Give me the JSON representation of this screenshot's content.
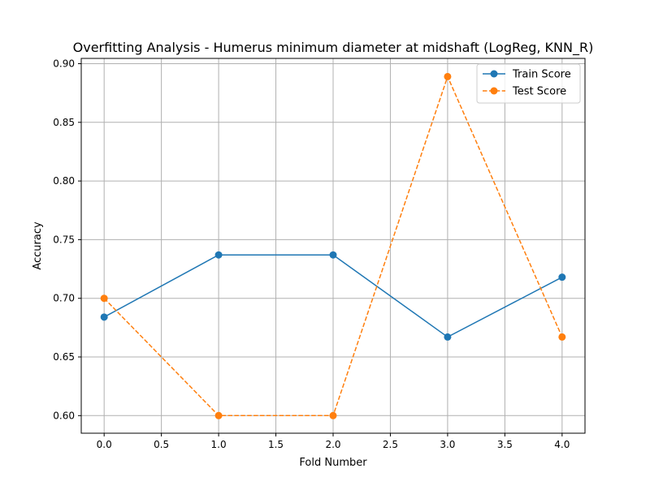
{
  "chart_data": {
    "type": "line",
    "title": "Overfitting Analysis - Humerus minimum diameter at midshaft (LogReg, KNN_R)",
    "xlabel": "Fold Number",
    "ylabel": "Accuracy",
    "xlim": [
      -0.2,
      4.2
    ],
    "ylim": [
      0.585,
      0.9045
    ],
    "xticks": [
      0.0,
      0.5,
      1.0,
      1.5,
      2.0,
      2.5,
      3.0,
      3.5,
      4.0
    ],
    "xtick_labels": [
      "0.0",
      "0.5",
      "1.0",
      "1.5",
      "2.0",
      "2.5",
      "3.0",
      "3.5",
      "4.0"
    ],
    "yticks": [
      0.6,
      0.65,
      0.7,
      0.75,
      0.8,
      0.85,
      0.9
    ],
    "ytick_labels": [
      "0.60",
      "0.65",
      "0.70",
      "0.75",
      "0.80",
      "0.85",
      "0.90"
    ],
    "grid": true,
    "legend_position": "top-right",
    "x": [
      0,
      1,
      2,
      3,
      4
    ],
    "series": [
      {
        "name": "Train Score",
        "values": [
          0.684,
          0.737,
          0.737,
          0.667,
          0.718
        ],
        "color": "#1f77b4",
        "linestyle": "solid",
        "marker": "circle"
      },
      {
        "name": "Test Score",
        "values": [
          0.7,
          0.6,
          0.6,
          0.889,
          0.667
        ],
        "color": "#ff7f0e",
        "linestyle": "dashed",
        "marker": "circle"
      }
    ]
  }
}
